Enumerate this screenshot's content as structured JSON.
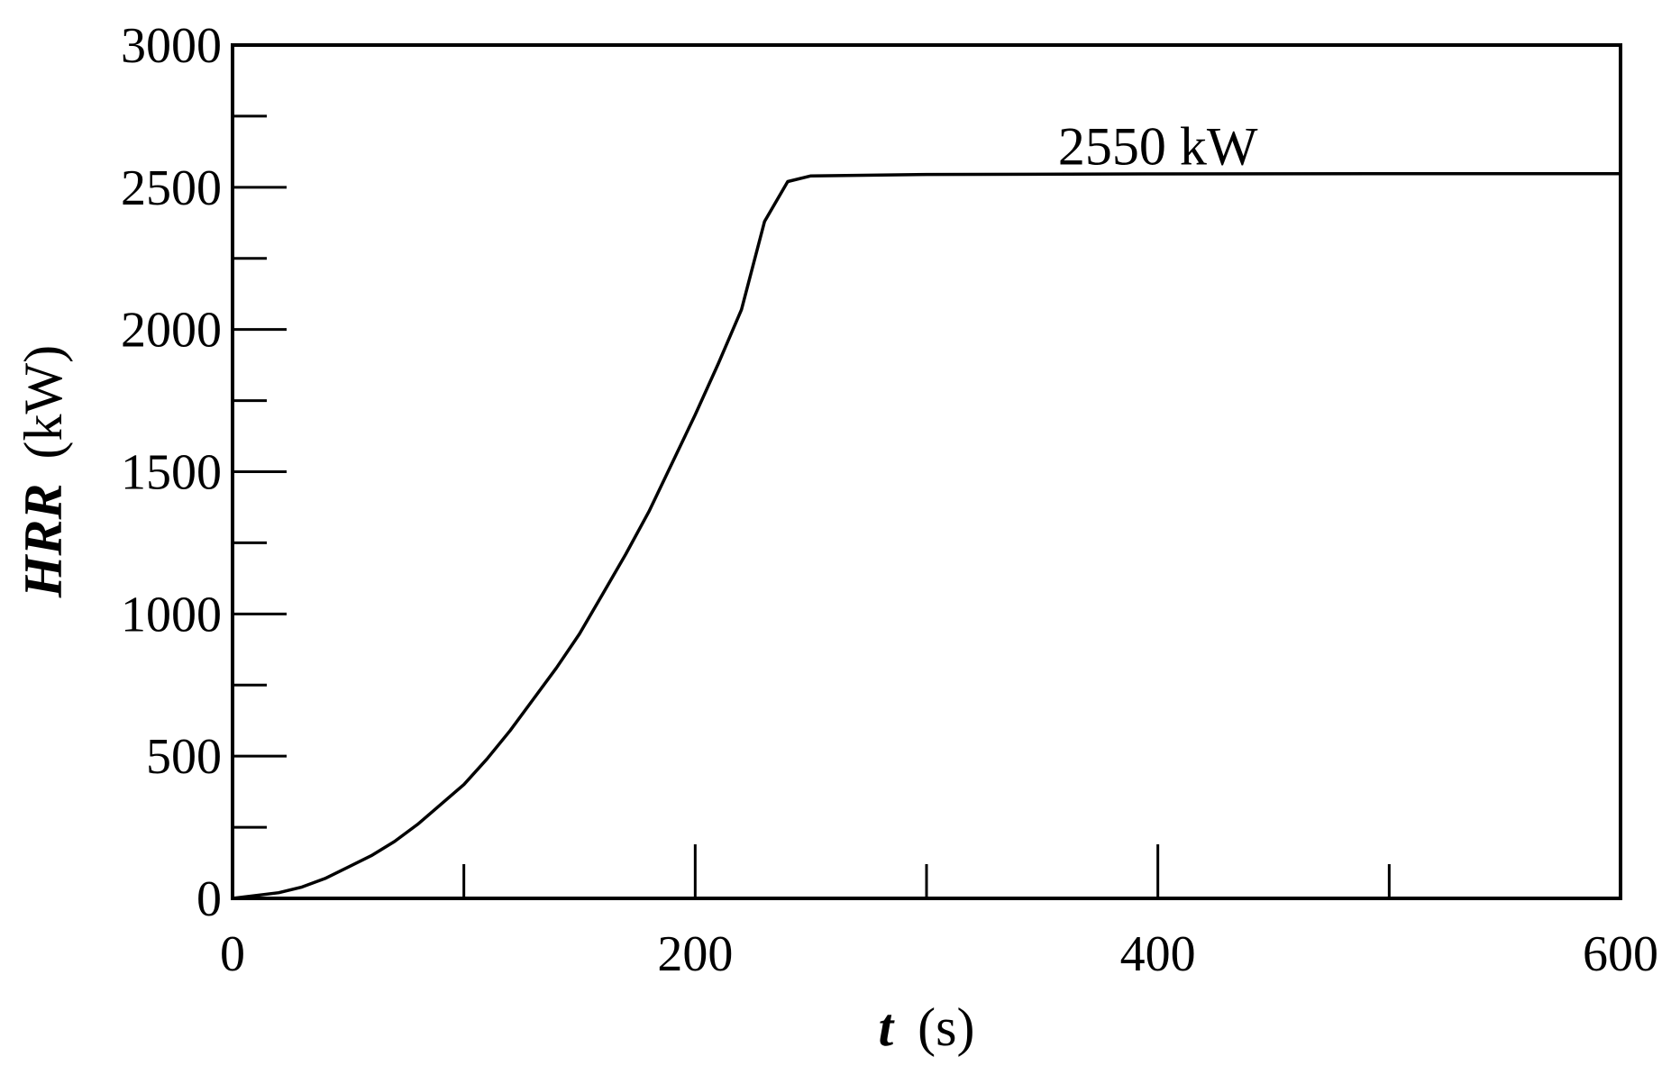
{
  "chart_data": {
    "type": "line",
    "title": "",
    "xlabel": {
      "var": "t",
      "unit": "(s)"
    },
    "ylabel": {
      "var": "HRR",
      "unit": "(kW)"
    },
    "xlim": [
      0,
      600
    ],
    "ylim": [
      0,
      3000
    ],
    "x_ticks": [
      0,
      200,
      400,
      600
    ],
    "x_minor_ticks": [
      100,
      300,
      500
    ],
    "y_ticks": [
      0,
      500,
      1000,
      1500,
      2000,
      2500,
      3000
    ],
    "y_minor_ticks": [
      250,
      750,
      1250,
      1750,
      2250,
      2750
    ],
    "x_tick_labels": [
      "0",
      "200",
      "400",
      "600"
    ],
    "y_tick_labels": [
      "0",
      "500",
      "1000",
      "1500",
      "2000",
      "2500",
      "3000"
    ],
    "grid": false,
    "series": [
      {
        "x": [
          0,
          10,
          20,
          30,
          40,
          50,
          60,
          70,
          80,
          90,
          100,
          110,
          120,
          130,
          140,
          150,
          160,
          170,
          180,
          190,
          200,
          210,
          220,
          230,
          240,
          250,
          300,
          400,
          500,
          600
        ],
        "y": [
          0,
          10,
          20,
          40,
          70,
          110,
          150,
          200,
          260,
          330,
          400,
          490,
          590,
          700,
          810,
          930,
          1070,
          1210,
          1360,
          1530,
          1700,
          1880,
          2070,
          2380,
          2520,
          2540,
          2545,
          2547,
          2548,
          2548
        ]
      }
    ],
    "annotations": [
      {
        "text": "2550 kW",
        "x": 400,
        "y": 2650
      }
    ]
  }
}
